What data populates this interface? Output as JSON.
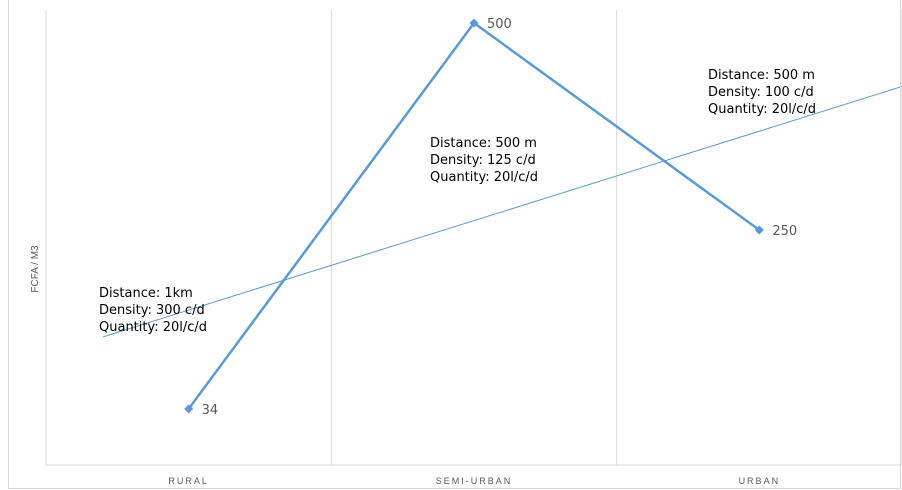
{
  "chart_data": {
    "type": "line",
    "categories": [
      "RURAL",
      "SEMI-URBAN",
      "URBAN"
    ],
    "series": [
      {
        "values": [
          34,
          500,
          250
        ],
        "color": "#5b9bd5",
        "data_labels": [
          "34",
          "500",
          "250"
        ]
      }
    ],
    "trendline": {
      "type": "linear",
      "color": "#5b9bd5"
    },
    "ylabel": "FCFA / M3",
    "ylim": [
      0,
      500
    ],
    "grid": "vertical",
    "annotations": [
      {
        "category": "RURAL",
        "lines": [
          "Distance: 1km",
          "Density: 300 c/d",
          "Quantity: 20l/c/d"
        ]
      },
      {
        "category": "SEMI-URBAN",
        "lines": [
          "Distance: 500 m",
          "Density: 125 c/d",
          "Quantity: 20l/c/d"
        ]
      },
      {
        "category": "URBAN",
        "lines": [
          "Distance: 500 m",
          "Density: 100 c/d",
          "Quantity: 20l/c/d"
        ]
      }
    ]
  }
}
